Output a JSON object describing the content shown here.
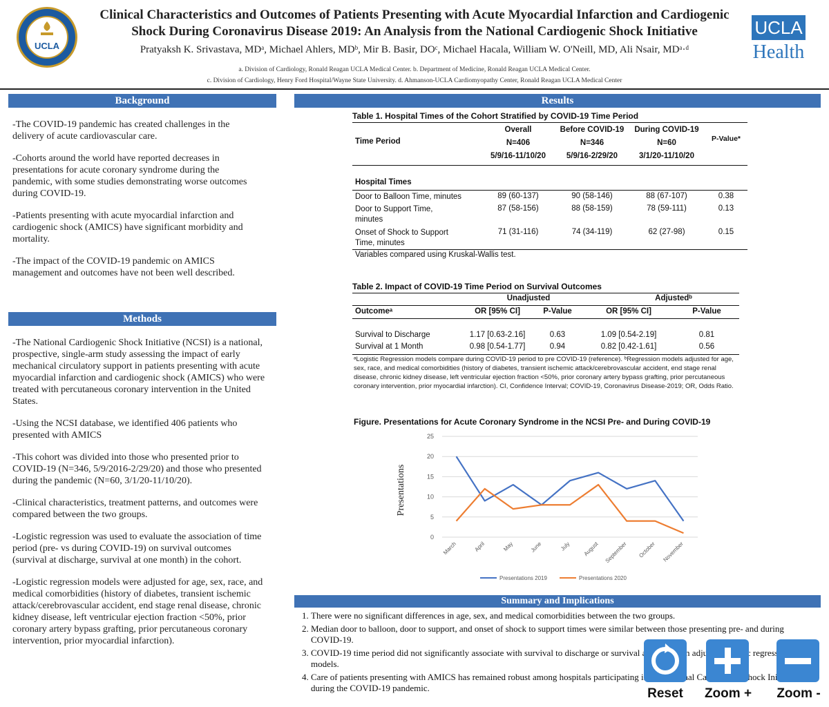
{
  "header": {
    "title_line1": "Clinical Characteristics and Outcomes of Patients Presenting with Acute Myocardial Infarction and Cardiogenic",
    "title_line2": "Shock During Coronavirus Disease 2019: An Analysis from the National Cardiogenic Shock Initiative",
    "authors": "Pratyaksh K. Srivastava, MDᵃ, Michael Ahlers, MDᵇ, Mir B. Basir, DOᶜ, Michael Hacala, William W. O'Neill, MD, Ali Nsair, MDᵃ·ᵈ",
    "affiliation1": "a. Division of Cardiology, Ronald Reagan UCLA Medical Center. b. Department of Medicine, Ronald Reagan UCLA Medical Center.",
    "affiliation2": "c. Division of Cardiology, Henry Ford Hospital/Wayne State University. d. Ahmanson-UCLA Cardiomyopathy Center, Ronald Reagan UCLA Medical Center",
    "seal_text": "UCLA",
    "logo_box": "UCLA",
    "logo_health": "Health"
  },
  "background": {
    "heading": "Background",
    "paragraphs": [
      "-The COVID-19 pandemic has created challenges in the delivery of acute cardiovascular care.",
      "-Cohorts around the world have reported decreases in presentations for acute coronary syndrome during the pandemic, with some studies demonstrating worse outcomes during COVID-19.",
      "-Patients presenting with acute myocardial infarction and cardiogenic shock (AMICS) have significant morbidity and mortality.",
      "-The impact of the COVID-19 pandemic on AMICS management and outcomes have not been well described."
    ]
  },
  "methods": {
    "heading": "Methods",
    "paragraphs": [
      "-The National Cardiogenic Shock Initiative (NCSI) is a national,  prospective, single-arm study assessing the impact of early mechanical circulatory support in patients presenting with acute myocardial infarction and cardiogenic shock (AMICS) who were treated with percutaneous coronary intervention in the United States.",
      "-Using the NCSI database, we identified 406 patients who presented with AMICS",
      "-This cohort was divided into those who presented prior to COVID-19 (N=346, 5/9/2016-2/29/20) and those who presented during the pandemic (N=60, 3/1/20-11/10/20).",
      "-Clinical characteristics, treatment patterns, and outcomes were compared between the two groups.",
      "-Logistic regression was used to evaluate the association of time period (pre- vs during COVID-19) on survival outcomes (survival at discharge, survival at one month) in the cohort.",
      "-Logistic regression models were adjusted for age, sex, race, and medical comorbidities (history of diabetes, transient ischemic attack/cerebrovascular accident, end stage renal disease, chronic kidney disease, left ventricular ejection fraction <50%, prior coronary artery bypass grafting, prior percutaneous coronary intervention, prior myocardial infarction)."
    ]
  },
  "results": {
    "heading": "Results",
    "table1": {
      "title": "Table 1. Hospital Times of the Cohort Stratified by COVID-19 Time Period",
      "row_label": "Time Period",
      "col_overall": [
        "Overall",
        "N=406",
        "5/9/16-11/10/20"
      ],
      "col_before": [
        "Before COVID-19",
        "N=346",
        "5/9/16-2/29/20"
      ],
      "col_during": [
        "During COVID-19",
        "N=60",
        "3/1/20-11/10/20"
      ],
      "col_p": "P-Value*",
      "section": "Hospital Times",
      "rows": [
        {
          "label": "Door to Balloon Time, minutes",
          "label2": "",
          "overall": "89 (60-137)",
          "before": "90 (58-146)",
          "during": "88 (67-107)",
          "p": "0.38"
        },
        {
          "label": "Door to Support Time,",
          "label2": "minutes",
          "overall": "87 (58-156)",
          "before": "88 (58-159)",
          "during": "78 (59-111)",
          "p": "0.13"
        },
        {
          "label": "Onset of Shock to Support",
          "label2": "Time, minutes",
          "overall": "71 (31-116)",
          "before": "74 (34-119)",
          "during": "62 (27-98)",
          "p": "0.15"
        }
      ],
      "footnote": "Variables compared using Kruskal-Wallis test."
    },
    "table2": {
      "title": "Table 2. Impact of COVID-19 Time Period on Survival Outcomes",
      "group_unadj": "Unadjusted",
      "group_adj": "Adjustedᵇ",
      "h_outcome": "Outcomeᵃ",
      "h_or1": "OR [95% CI]",
      "h_p1": "P-Value",
      "h_or2": "OR [95% CI]",
      "h_p2": "P-Value",
      "rows": [
        {
          "outcome": "Survival to Discharge",
          "or1": "1.17 [0.63-2.16]",
          "p1": "0.63",
          "or2": "1.09 [0.54-2.19]",
          "p2": "0.81"
        },
        {
          "outcome": "Survival at 1 Month",
          "or1": "0.98 [0.54-1.77]",
          "p1": "0.94",
          "or2": "0.82 [0.42-1.61]",
          "p2": "0.56"
        }
      ],
      "footnote": "ᵃLogistic Regression models compare during COVID-19 period to pre COVID-19 (reference). ᵇRegression models adjusted for age, sex, race, and medical comorbidities (history of diabetes, transient ischemic attack/cerebrovascular accident, end stage renal disease, chronic kidney disease, left ventricular ejection fraction <50%, prior coronary artery bypass grafting, prior percutaneous coronary intervention, prior myocardial infarction). CI, Confidence Interval; COVID-19, Coronavirus Disease-2019; OR, Odds Ratio."
    },
    "figure_title": "Figure. Presentations for Acute Coronary Syndrome in the NCSI Pre- and During COVID-19"
  },
  "chart_data": {
    "type": "line",
    "title": "Figure. Presentations for Acute Coronary Syndrome in the NCSI Pre- and During COVID-19",
    "xlabel": "",
    "ylabel": "Presentations",
    "categories": [
      "March",
      "April",
      "May",
      "June",
      "July",
      "August",
      "September",
      "October",
      "November"
    ],
    "ylim": [
      0,
      25
    ],
    "yticks": [
      "0",
      "5",
      "10",
      "15",
      "20",
      "25"
    ],
    "series": [
      {
        "name": "Presentations 2019",
        "color": "#4472c4",
        "values": [
          20,
          9,
          13,
          8,
          14,
          16,
          12,
          14,
          4
        ]
      },
      {
        "name": "Presentations 2020",
        "color": "#ed7d31",
        "values": [
          4,
          12,
          7,
          8,
          8,
          13,
          4,
          4,
          1
        ]
      }
    ],
    "grid": true,
    "legend": "bottom"
  },
  "summary": {
    "heading": "Summary and Implications",
    "items": [
      "There were no significant differences in age, sex, and medical comorbidities between the two groups.",
      "Median door to balloon, door to support, and onset of shock to support times were similar between those presenting pre- and during COVID-19.",
      "COVID-19 time period did not significantly associate with survival to discharge or survival at 1 month in adjusted logistic regression models.",
      "Care of patients presenting with AMICS has remained robust among hospitals participating in the National Cardiogenic Shock Initiative during the COVID-19 pandemic."
    ]
  },
  "controls": {
    "reset_label": "Reset",
    "zoom_in_label": "Zoom +",
    "zoom_out_label": "Zoom -"
  }
}
